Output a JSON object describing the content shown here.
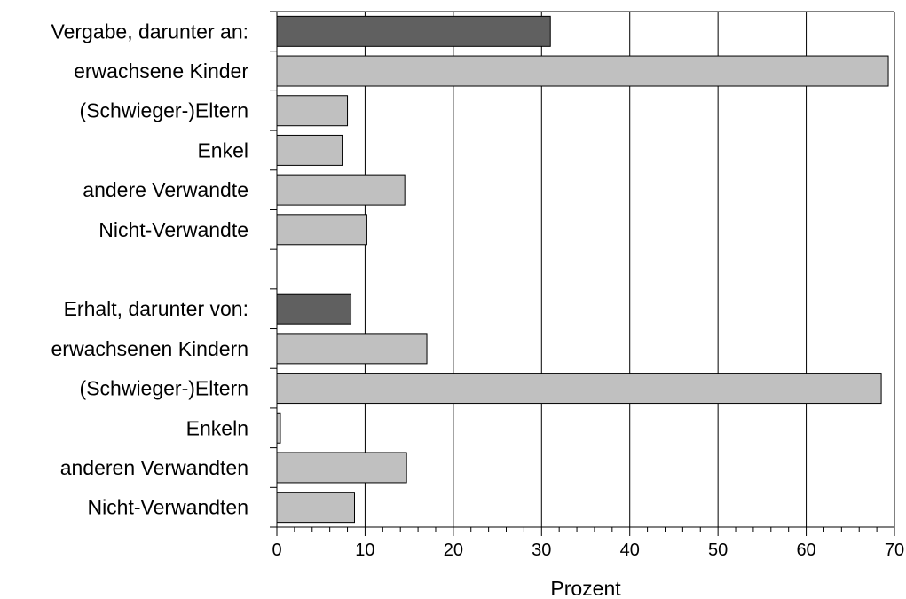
{
  "chart_data": {
    "type": "bar",
    "orientation": "horizontal",
    "title": "",
    "xlabel": "Prozent",
    "ylabel": "",
    "xlim": [
      0,
      70
    ],
    "xticks": [
      0,
      10,
      20,
      30,
      40,
      50,
      60,
      70
    ],
    "grid": "vertical",
    "legend": "none",
    "colors": {
      "header": "#606060",
      "sub": "#c0c0c0",
      "edge": "#000000"
    },
    "categories": [
      "Vergabe, darunter an:",
      "erwachsene Kinder",
      "(Schwieger-)Eltern",
      "Enkel",
      "andere Verwandte",
      "Nicht-Verwandte",
      "",
      "Erhalt, darunter von:",
      "erwachsenen Kindern",
      "(Schwieger-)Eltern",
      "Enkeln",
      "anderen Verwandten",
      "Nicht-Verwandten"
    ],
    "values": [
      31,
      69.3,
      8,
      7.4,
      14.5,
      10.2,
      null,
      8.4,
      17,
      68.5,
      0.4,
      14.7,
      8.8
    ],
    "kinds": [
      "header",
      "sub",
      "sub",
      "sub",
      "sub",
      "sub",
      "gap",
      "header",
      "sub",
      "sub",
      "sub",
      "sub",
      "sub"
    ]
  }
}
